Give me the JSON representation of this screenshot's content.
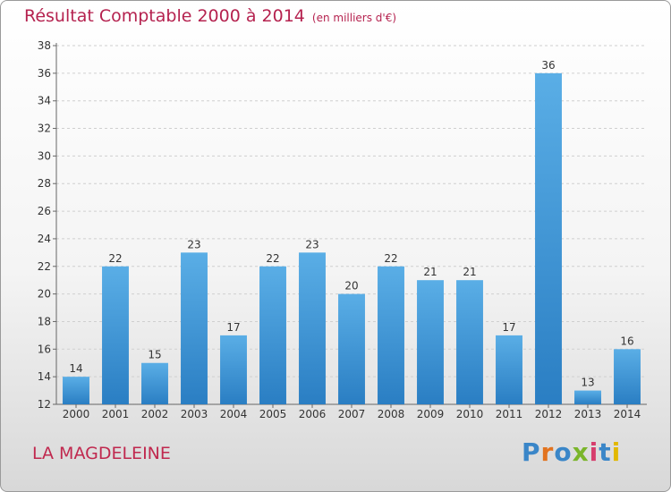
{
  "title": "Résultat Comptable 2000 à 2014",
  "subtitle": "(en milliers d'€)",
  "place": "LA MAGDELEINE",
  "logo": {
    "text": "Proxiti",
    "letter_colors": [
      "#3a86c8",
      "#e2731f",
      "#3a86c8",
      "#7ab52a",
      "#d63d6d",
      "#3a86c8",
      "#e2b800"
    ]
  },
  "colors": {
    "title": "#b5224f",
    "bar_top": "#5aaee6",
    "bar_bottom": "#2a7ec3"
  },
  "chart_data": {
    "type": "bar",
    "title": "Résultat Comptable 2000 à 2014",
    "subtitle": "(en milliers d'€)",
    "categories": [
      "2000",
      "2001",
      "2002",
      "2003",
      "2004",
      "2005",
      "2006",
      "2007",
      "2008",
      "2009",
      "2010",
      "2011",
      "2012",
      "2013",
      "2014"
    ],
    "values": [
      14,
      22,
      15,
      23,
      17,
      22,
      23,
      20,
      22,
      21,
      21,
      17,
      36,
      13,
      16
    ],
    "ylim": [
      12,
      38
    ],
    "yticks": [
      12,
      14,
      16,
      18,
      20,
      22,
      24,
      26,
      28,
      30,
      32,
      34,
      36,
      38
    ],
    "grid": true
  }
}
